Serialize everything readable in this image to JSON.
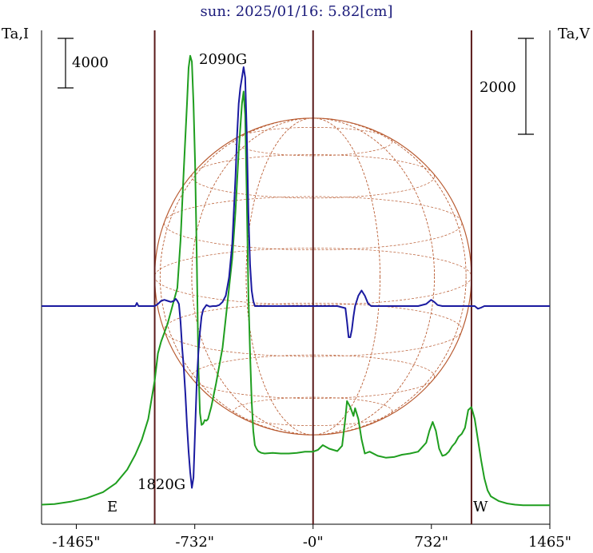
{
  "chart_data": {
    "type": "line",
    "title": "sun: 2025/01/16: 5.82[cm]",
    "ylabel_left": "Ta,I",
    "ylabel_right": "Ta,V",
    "scale_bar_left": "4000",
    "scale_bar_right": "2000",
    "xlim": [
      -1680,
      1465
    ],
    "x_ticks": [
      {
        "value": -1465,
        "label": "-1465\""
      },
      {
        "value": -732,
        "label": "-732\""
      },
      {
        "value": 0,
        "label": "-0\""
      },
      {
        "value": 732,
        "label": "732\""
      },
      {
        "value": 1465,
        "label": "1465\""
      }
    ],
    "limb_markers": [
      -980,
      0,
      980
    ],
    "limb_labels": {
      "east": "E",
      "west": "W"
    },
    "annotations": [
      {
        "text": "2090G",
        "x": -420
      },
      {
        "text": "1820G",
        "x": -750
      }
    ],
    "series": [
      {
        "color": "#1f9e1f",
        "x": [
          -1680,
          -1600,
          -1500,
          -1400,
          -1300,
          -1220,
          -1150,
          -1100,
          -1060,
          -1020,
          -980,
          -960,
          -940,
          -920,
          -900,
          -880,
          -860,
          -840,
          -820,
          -800,
          -780,
          -770,
          -760,
          -750,
          -740,
          -730,
          -720,
          -710,
          -700,
          -690,
          -680,
          -670,
          -660,
          -650,
          -640,
          -630,
          -600,
          -560,
          -520,
          -500,
          -480,
          -460,
          -440,
          -430,
          -420,
          -410,
          -400,
          -390,
          -380,
          -370,
          -360,
          -350,
          -340,
          -320,
          -300,
          -250,
          -200,
          -150,
          -100,
          -50,
          0,
          30,
          60,
          100,
          150,
          180,
          200,
          210,
          230,
          250,
          260,
          280,
          300,
          320,
          350,
          400,
          450,
          500,
          550,
          600,
          650,
          700,
          720,
          740,
          760,
          780,
          800,
          820,
          840,
          860,
          880,
          900,
          920,
          940,
          960,
          980,
          1000,
          1020,
          1040,
          1060,
          1080,
          1100,
          1150,
          1200,
          1250,
          1300,
          1350,
          1400,
          1465
        ],
        "y": [
          60,
          70,
          110,
          170,
          270,
          420,
          650,
          900,
          1150,
          1500,
          2150,
          2600,
          2800,
          2950,
          3100,
          3300,
          3500,
          3700,
          4500,
          5700,
          6800,
          7400,
          7600,
          7500,
          6800,
          5800,
          4300,
          2400,
          1600,
          1400,
          1420,
          1480,
          1470,
          1500,
          1600,
          1700,
          2100,
          2700,
          3700,
          4200,
          5000,
          6000,
          6800,
          7000,
          6600,
          5200,
          3600,
          2600,
          1800,
          1300,
          1060,
          1000,
          960,
          930,
          920,
          930,
          920,
          920,
          930,
          950,
          950,
          980,
          1060,
          1000,
          960,
          1050,
          1520,
          1800,
          1700,
          1550,
          1680,
          1500,
          1160,
          920,
          950,
          880,
          850,
          860,
          900,
          920,
          950,
          1100,
          1300,
          1450,
          1300,
          1000,
          880,
          900,
          950,
          1040,
          1100,
          1200,
          1250,
          1350,
          1650,
          1700,
          1500,
          1150,
          800,
          500,
          300,
          200,
          120,
          80,
          60,
          50,
          50,
          50,
          50
        ]
      },
      {
        "color": "#1a1aa0",
        "x": [
          -1680,
          -1200,
          -1100,
          -1090,
          -1080,
          -1060,
          -1040,
          -1000,
          -980,
          -960,
          -940,
          -920,
          -900,
          -880,
          -860,
          -850,
          -840,
          -830,
          -820,
          -810,
          -800,
          -790,
          -780,
          -770,
          -760,
          -750,
          -740,
          -730,
          -720,
          -710,
          -700,
          -690,
          -680,
          -660,
          -640,
          -620,
          -600,
          -580,
          -560,
          -540,
          -520,
          -500,
          -480,
          -470,
          -460,
          -450,
          -440,
          -430,
          -420,
          -410,
          -400,
          -390,
          -380,
          -370,
          -360,
          -340,
          -300,
          -200,
          -100,
          0,
          100,
          150,
          200,
          210,
          220,
          230,
          240,
          250,
          260,
          280,
          300,
          320,
          340,
          360,
          400,
          450,
          500,
          550,
          600,
          650,
          700,
          730,
          750,
          770,
          800,
          850,
          900,
          950,
          980,
          1000,
          1020,
          1040,
          1060,
          1100,
          1200,
          1300,
          1465
        ],
        "y": [
          0,
          0,
          0,
          60,
          0,
          0,
          0,
          0,
          0,
          40,
          100,
          120,
          100,
          80,
          100,
          140,
          100,
          40,
          -300,
          -800,
          -1200,
          -1700,
          -2300,
          -2800,
          -3200,
          -3500,
          -3300,
          -2400,
          -1500,
          -900,
          -500,
          -200,
          -70,
          20,
          -10,
          0,
          0,
          20,
          80,
          200,
          550,
          1200,
          2500,
          3300,
          3900,
          4200,
          4400,
          4600,
          4400,
          3300,
          1800,
          800,
          300,
          100,
          0,
          0,
          0,
          0,
          0,
          0,
          0,
          0,
          -40,
          -300,
          -600,
          -600,
          -450,
          -200,
          0,
          200,
          300,
          200,
          50,
          0,
          0,
          0,
          0,
          0,
          0,
          0,
          40,
          120,
          80,
          20,
          0,
          0,
          0,
          0,
          0,
          0,
          -50,
          -30,
          0,
          0,
          0,
          0,
          0
        ]
      }
    ]
  },
  "colors": {
    "limb_lines": "#5a1a1a",
    "globe": "#b85a30",
    "background": "#ffffff"
  }
}
